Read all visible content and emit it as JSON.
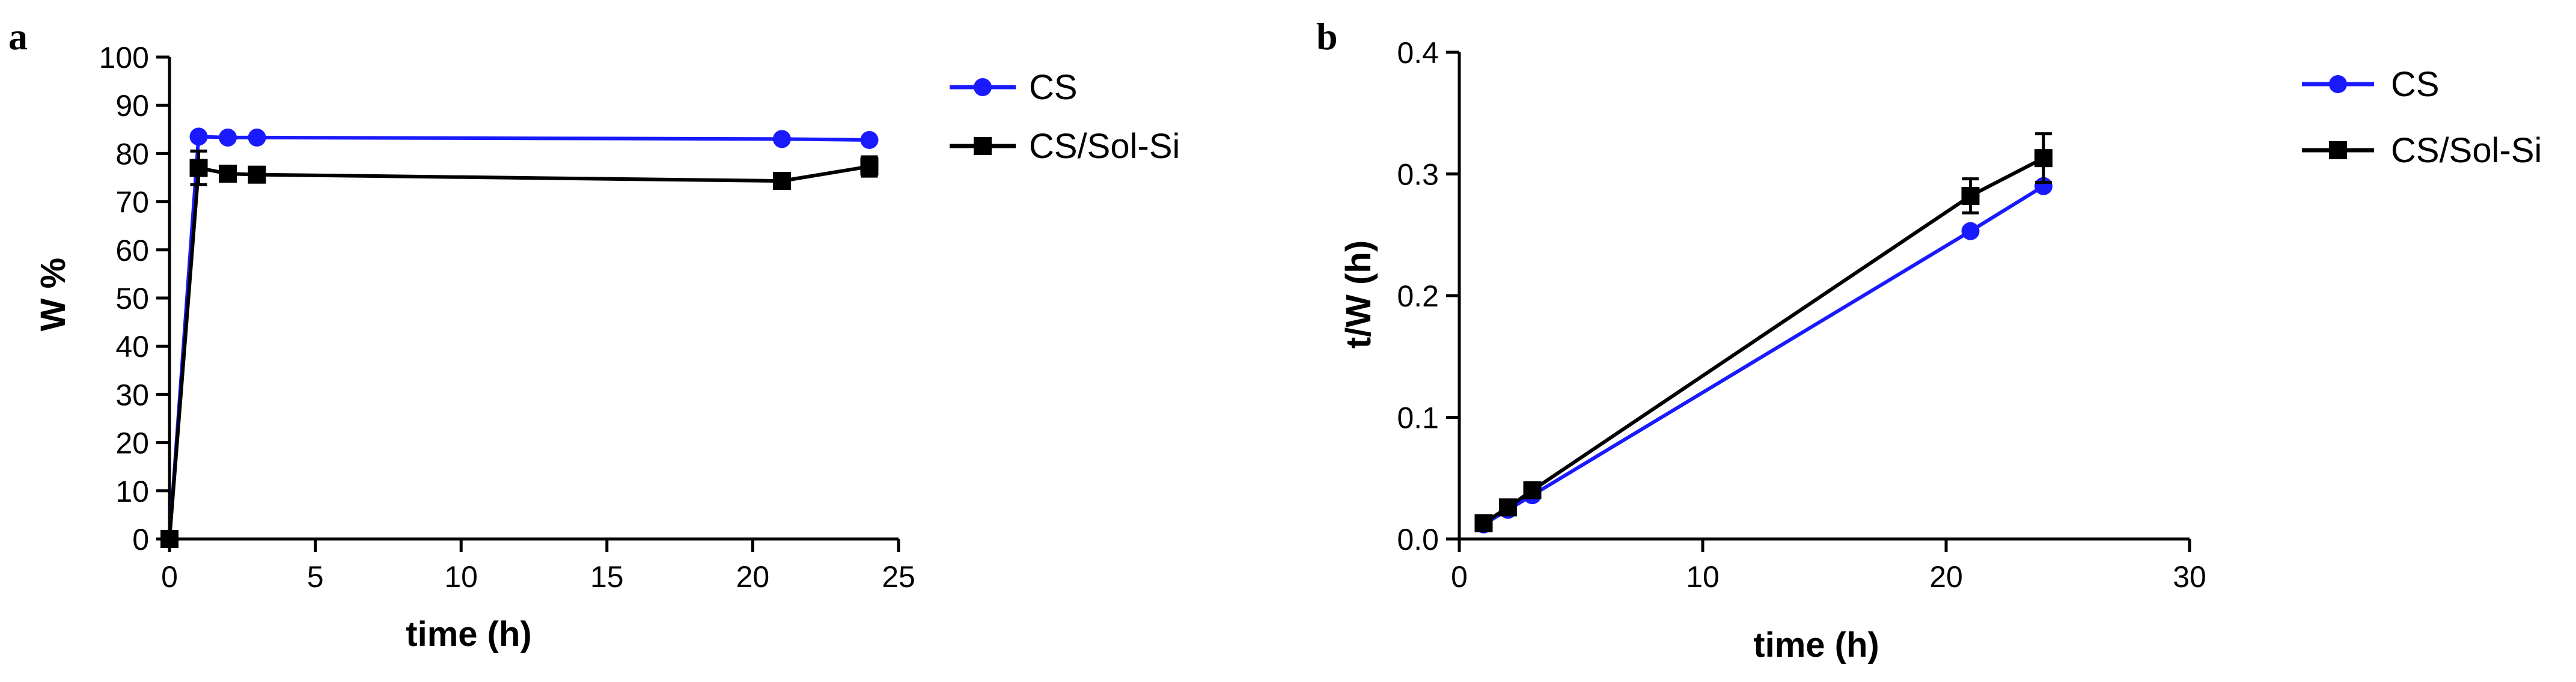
{
  "colors": {
    "CS": "#1a1aff",
    "CS/Sol-Si": "#000000"
  },
  "chart_data": [
    {
      "panel": "a",
      "type": "line",
      "xlabel": "time (h)",
      "ylabel": "W %",
      "xlim": [
        0,
        25
      ],
      "ylim": [
        0,
        100
      ],
      "xticks": [
        0,
        5,
        10,
        15,
        20,
        25
      ],
      "yticks": [
        0,
        10,
        20,
        30,
        40,
        50,
        60,
        70,
        80,
        90,
        100
      ],
      "legend": "top-right",
      "grid": false,
      "series": [
        {
          "name": "CS",
          "marker": "circle",
          "x": [
            0,
            1,
            2,
            3,
            21,
            24
          ],
          "y": [
            0,
            83.5,
            83.3,
            83.3,
            83.0,
            82.8
          ],
          "err": [
            0,
            0,
            0,
            0,
            0,
            0
          ]
        },
        {
          "name": "CS/Sol-Si",
          "marker": "square",
          "x": [
            0,
            1,
            2,
            3,
            21,
            24
          ],
          "y": [
            0,
            77.0,
            75.8,
            75.6,
            74.3,
            77.3
          ],
          "err": [
            0,
            3.5,
            0.8,
            0.8,
            0.8,
            2.0
          ]
        }
      ]
    },
    {
      "panel": "b",
      "type": "line",
      "xlabel": "time (h)",
      "ylabel": "t/W (h)",
      "xlim": [
        0,
        30
      ],
      "ylim": [
        0,
        0.4
      ],
      "xticks": [
        0,
        10,
        20,
        30
      ],
      "yticks": [
        "0.0",
        "0.1",
        "0.2",
        "0.3",
        "0.4"
      ],
      "legend": "top-right",
      "grid": false,
      "series": [
        {
          "name": "CS",
          "marker": "circle",
          "x": [
            1,
            2,
            3,
            21,
            24
          ],
          "y": [
            0.012,
            0.024,
            0.036,
            0.253,
            0.29
          ],
          "err": [
            0,
            0,
            0,
            0,
            0
          ]
        },
        {
          "name": "CS/Sol-Si",
          "marker": "square",
          "x": [
            1,
            2,
            3,
            21,
            24
          ],
          "y": [
            0.013,
            0.026,
            0.04,
            0.282,
            0.313
          ],
          "err": [
            0.001,
            0.002,
            0.002,
            0.014,
            0.02
          ]
        }
      ]
    }
  ]
}
